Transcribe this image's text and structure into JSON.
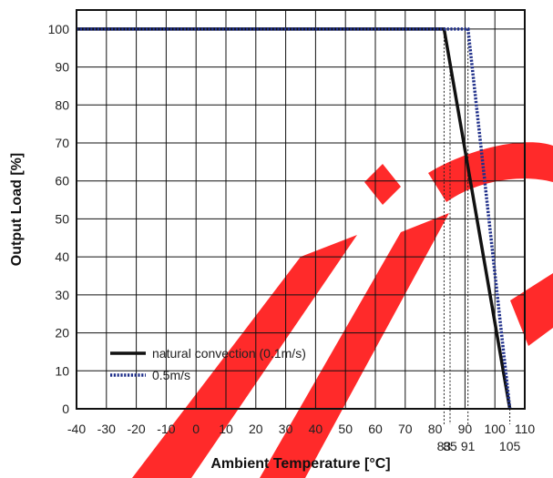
{
  "chart_data": {
    "type": "line",
    "title": "",
    "xlabel": "Ambient Temperature [°C]",
    "ylabel": "Output Load [%]",
    "xlim": [
      -40,
      110
    ],
    "ylim": [
      0,
      105
    ],
    "x_ticks": [
      -40,
      -30,
      -20,
      -10,
      0,
      10,
      20,
      30,
      40,
      50,
      60,
      70,
      80,
      90,
      100,
      110
    ],
    "y_ticks": [
      0,
      10,
      20,
      30,
      40,
      50,
      60,
      70,
      80,
      90,
      100
    ],
    "grid": true,
    "legend_position": "bottom-left",
    "series": [
      {
        "name": "natural convection (0.1m/s)",
        "style": "solid",
        "color": "#111111",
        "x": [
          -40,
          83,
          105
        ],
        "y": [
          100,
          100,
          0
        ]
      },
      {
        "name": "0.5m/s",
        "style": "dotted",
        "color": "#1f2f8a",
        "x": [
          -40,
          91,
          105
        ],
        "y": [
          100,
          100,
          0
        ]
      }
    ],
    "markers": [
      {
        "x": 83,
        "label": "83"
      },
      {
        "x": 85,
        "label": "85"
      },
      {
        "x": 91,
        "label": "91"
      },
      {
        "x": 105,
        "label": "105"
      }
    ],
    "watermark_color": "#ff2a2a"
  }
}
